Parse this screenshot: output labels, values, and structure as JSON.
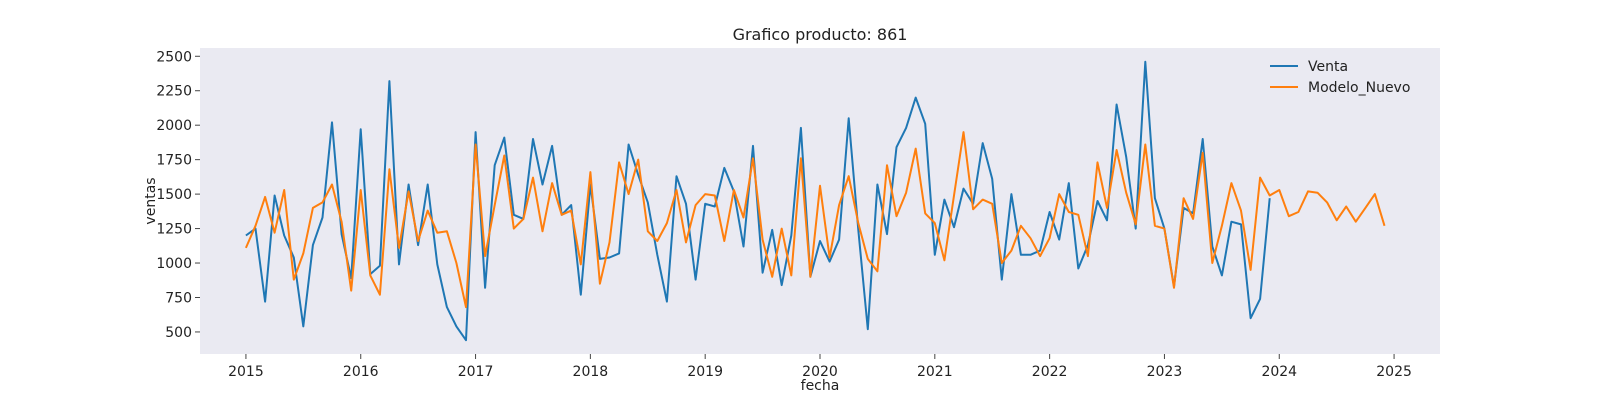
{
  "chart_data": {
    "type": "line",
    "title": "Grafico producto: 861",
    "xlabel": "fecha",
    "ylabel": "ventas",
    "xlim": [
      2014.6,
      2025.4
    ],
    "ylim": [
      340,
      2560
    ],
    "x_ticks": [
      "2015",
      "2016",
      "2017",
      "2018",
      "2019",
      "2020",
      "2021",
      "2022",
      "2023",
      "2024",
      "2025"
    ],
    "y_ticks": [
      500,
      750,
      1000,
      1250,
      1500,
      1750,
      2000,
      2250,
      2500
    ],
    "grid": false,
    "legend": "upper-right",
    "series": [
      {
        "name": "Venta",
        "color": "#1f77b4",
        "start": "2015-01",
        "values": [
          1200,
          1250,
          720,
          1490,
          1200,
          1040,
          540,
          1130,
          1330,
          2020,
          1210,
          890,
          1970,
          920,
          980,
          2320,
          990,
          1570,
          1130,
          1570,
          990,
          680,
          540,
          440,
          1950,
          820,
          1710,
          1910,
          1350,
          1320,
          1900,
          1570,
          1850,
          1350,
          1420,
          770,
          1570,
          1030,
          1040,
          1070,
          1860,
          1640,
          1440,
          1060,
          720,
          1630,
          1430,
          880,
          1430,
          1410,
          1690,
          1520,
          1120,
          1850,
          930,
          1240,
          840,
          1200,
          1980,
          900,
          1160,
          1010,
          1170,
          2050,
          1240,
          520,
          1570,
          1210,
          1840,
          1980,
          2200,
          2010,
          1060,
          1460,
          1260,
          1540,
          1430,
          1870,
          1610,
          880,
          1500,
          1060,
          1060,
          1090,
          1370,
          1170,
          1580,
          960,
          1130,
          1450,
          1310,
          2150,
          1770,
          1250,
          2460,
          1470,
          1250,
          830,
          1400,
          1360,
          1900,
          1120,
          910,
          1300,
          1280,
          600,
          740,
          1470
        ]
      },
      {
        "name": "Modelo_Nuevo",
        "color": "#ff7f0e",
        "start": "2015-01",
        "values": [
          1110,
          1270,
          1480,
          1220,
          1530,
          880,
          1070,
          1400,
          1440,
          1570,
          1300,
          800,
          1530,
          910,
          770,
          1680,
          1110,
          1520,
          1160,
          1380,
          1220,
          1230,
          1000,
          680,
          1860,
          1050,
          1420,
          1780,
          1250,
          1320,
          1620,
          1230,
          1580,
          1350,
          1380,
          990,
          1660,
          850,
          1150,
          1730,
          1500,
          1750,
          1230,
          1160,
          1290,
          1530,
          1150,
          1420,
          1500,
          1490,
          1160,
          1530,
          1330,
          1760,
          1170,
          900,
          1250,
          910,
          1760,
          900,
          1560,
          1040,
          1420,
          1630,
          1290,
          1030,
          940,
          1710,
          1340,
          1510,
          1830,
          1360,
          1290,
          1020,
          1490,
          1950,
          1390,
          1460,
          1430,
          1000,
          1090,
          1270,
          1180,
          1050,
          1180,
          1500,
          1370,
          1350,
          1050,
          1730,
          1400,
          1820,
          1510,
          1280,
          1860,
          1270,
          1250,
          820,
          1470,
          1320,
          1800,
          1000,
          1270,
          1580,
          1380,
          950,
          1620,
          1490,
          1530,
          1340,
          1370,
          1520,
          1510,
          1440,
          1310,
          1410,
          1300,
          1400,
          1500,
          1270
        ]
      }
    ]
  }
}
